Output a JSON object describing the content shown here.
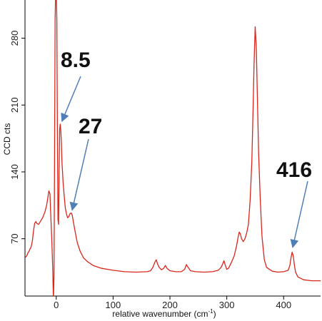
{
  "chart_data": {
    "type": "line",
    "xlabel": "relative wavenumber (cm",
    "xlabel_sup": "-1",
    "xlabel_end": ")",
    "ylabel": "CCD cts",
    "xlim": [
      -55,
      465
    ],
    "ylim": [
      10,
      320
    ],
    "x_ticks": [
      0,
      100,
      200,
      300,
      400
    ],
    "y_ticks": [
      70,
      140,
      210,
      280
    ],
    "grid": false,
    "series": [
      {
        "color": "#d9261c",
        "points": [
          [
            -55,
            50
          ],
          [
            -52,
            52
          ],
          [
            -50,
            55
          ],
          [
            -47,
            58
          ],
          [
            -44,
            62
          ],
          [
            -42,
            68
          ],
          [
            -40,
            78
          ],
          [
            -38,
            86
          ],
          [
            -36,
            88
          ],
          [
            -34,
            86
          ],
          [
            -31,
            85
          ],
          [
            -28,
            88
          ],
          [
            -24,
            92
          ],
          [
            -20,
            98
          ],
          [
            -17,
            105
          ],
          [
            -15,
            112
          ],
          [
            -13,
            120
          ],
          [
            -11,
            117
          ],
          [
            -10,
            100
          ],
          [
            -8,
            72
          ],
          [
            -6,
            35
          ],
          [
            -5,
            5
          ],
          [
            -4,
            30
          ],
          [
            -3,
            150
          ],
          [
            -2,
            300
          ],
          [
            -1,
            330
          ],
          [
            0,
            330
          ],
          [
            1,
            300
          ],
          [
            2,
            180
          ],
          [
            3,
            90
          ],
          [
            4,
            85
          ],
          [
            5,
            140
          ],
          [
            6,
            185
          ],
          [
            7,
            190
          ],
          [
            8,
            183
          ],
          [
            9,
            170
          ],
          [
            10,
            150
          ],
          [
            12,
            130
          ],
          [
            14,
            115
          ],
          [
            16,
            102
          ],
          [
            18,
            96
          ],
          [
            20,
            92
          ],
          [
            22,
            93
          ],
          [
            24,
            96
          ],
          [
            26,
            97
          ],
          [
            28,
            95
          ],
          [
            30,
            88
          ],
          [
            33,
            78
          ],
          [
            37,
            66
          ],
          [
            42,
            57
          ],
          [
            48,
            50
          ],
          [
            55,
            46
          ],
          [
            65,
            42
          ],
          [
            80,
            39
          ],
          [
            100,
            37
          ],
          [
            120,
            35.5
          ],
          [
            140,
            35
          ],
          [
            160,
            35.5
          ],
          [
            166,
            36.5
          ],
          [
            170,
            40
          ],
          [
            174,
            46
          ],
          [
            176,
            48
          ],
          [
            178,
            44
          ],
          [
            181,
            40
          ],
          [
            185,
            37.5
          ],
          [
            189,
            39
          ],
          [
            192,
            42
          ],
          [
            195,
            39
          ],
          [
            200,
            36.5
          ],
          [
            210,
            35.5
          ],
          [
            220,
            35.5
          ],
          [
            226,
            38
          ],
          [
            229,
            43
          ],
          [
            232,
            40
          ],
          [
            236,
            36.5
          ],
          [
            245,
            35.5
          ],
          [
            260,
            35
          ],
          [
            275,
            35.5
          ],
          [
            285,
            37
          ],
          [
            290,
            40
          ],
          [
            293,
            44
          ],
          [
            295,
            47
          ],
          [
            297,
            43
          ],
          [
            300,
            38
          ],
          [
            303,
            39
          ],
          [
            308,
            45
          ],
          [
            313,
            52
          ],
          [
            317,
            62
          ],
          [
            320,
            72
          ],
          [
            322,
            77
          ],
          [
            324,
            75
          ],
          [
            326,
            70
          ],
          [
            329,
            67
          ],
          [
            332,
            70
          ],
          [
            335,
            76
          ],
          [
            338,
            85
          ],
          [
            341,
            110
          ],
          [
            344,
            150
          ],
          [
            346,
            200
          ],
          [
            348,
            255
          ],
          [
            350,
            292
          ],
          [
            352,
            270
          ],
          [
            354,
            215
          ],
          [
            356,
            160
          ],
          [
            359,
            110
          ],
          [
            362,
            72
          ],
          [
            366,
            48
          ],
          [
            370,
            40
          ],
          [
            380,
            36
          ],
          [
            390,
            35
          ],
          [
            400,
            35.5
          ],
          [
            408,
            37
          ],
          [
            411,
            42
          ],
          [
            413,
            50
          ],
          [
            415,
            56
          ],
          [
            417,
            52
          ],
          [
            419,
            42
          ],
          [
            421,
            35
          ],
          [
            425,
            30
          ],
          [
            435,
            27
          ],
          [
            450,
            26
          ],
          [
            465,
            26
          ]
        ]
      }
    ],
    "annotations": [
      {
        "text": "8.5",
        "x": 10,
        "y": 190,
        "label_pos": [
          85,
          94
        ],
        "arrow_from": [
          113,
          107
        ]
      },
      {
        "text": "27",
        "x": 28,
        "y": 97,
        "label_pos": [
          110,
          187
        ],
        "arrow_from": [
          124,
          195
        ]
      },
      {
        "text": "416",
        "x": 416,
        "y": 58,
        "label_pos": [
          387,
          248
        ],
        "arrow_from": [
          431,
          254
        ]
      }
    ]
  }
}
